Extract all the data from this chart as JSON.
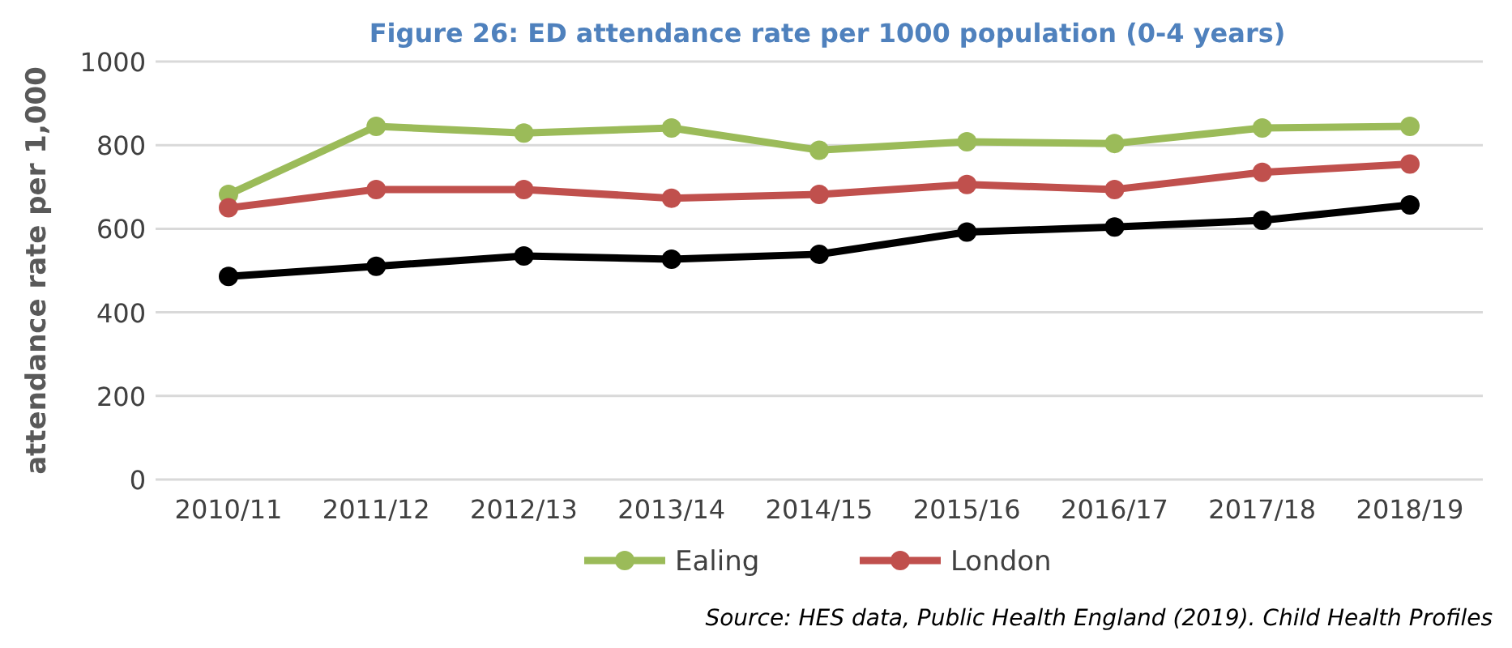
{
  "chart_data": {
    "type": "line",
    "title": "Figure 26:  ED attendance rate per 1000 population (0-4 years)",
    "ylabel": "attendance rate per 1,000",
    "categories": [
      "2010/11",
      "2011/12",
      "2012/13",
      "2013/14",
      "2014/15",
      "2015/16",
      "2016/17",
      "2017/18",
      "2018/19"
    ],
    "series": [
      {
        "name": "Ealing",
        "color": "#9bbb59",
        "values": [
          682,
          845,
          829,
          841,
          788,
          808,
          804,
          841,
          845
        ]
      },
      {
        "name": "London",
        "color": "#c0504d",
        "values": [
          650,
          694,
          694,
          673,
          682,
          706,
          694,
          735,
          755
        ]
      },
      {
        "color": "#000000",
        "values": [
          486,
          510,
          535,
          527,
          539,
          592,
          604,
          620,
          657
        ]
      }
    ],
    "ylim": [
      0,
      1000
    ],
    "yticks": [
      0,
      200,
      400,
      600,
      800,
      1000
    ],
    "grid": "y",
    "legend": "bottom",
    "marker": "circle",
    "line_style": "solid",
    "annotations": [
      "Source: HES data, Public Health England (2019). Child Health Profiles"
    ]
  }
}
